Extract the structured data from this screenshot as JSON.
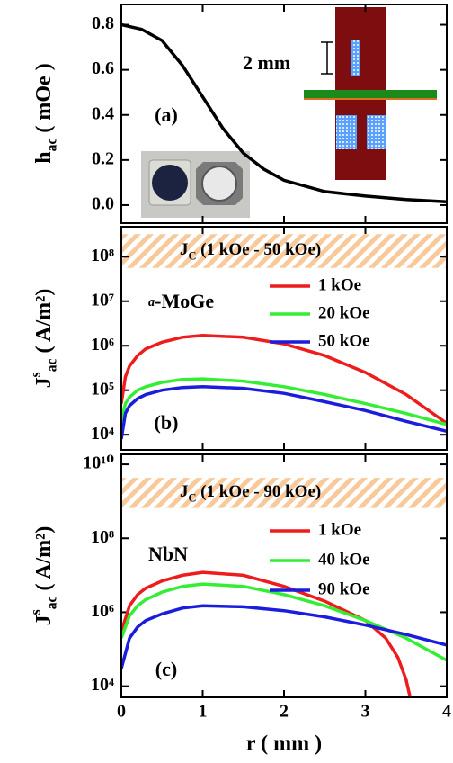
{
  "chart_data": [
    {
      "type": "line",
      "panel_label": "(a)",
      "ylabel": {
        "main": "h",
        "sub": "ac",
        "unit": " ( mOe )"
      },
      "annotation": "2 mm",
      "xlim": [
        0,
        4
      ],
      "xticks": [
        0,
        1,
        2,
        3,
        4
      ],
      "ylim": [
        -0.08,
        0.89
      ],
      "yticks": [
        {
          "value": 0,
          "label": "0.0"
        },
        0.2,
        0.4,
        0.6,
        0.8
      ],
      "series": [
        {
          "color": "#000000",
          "x": [
            0,
            0.25,
            0.5,
            0.75,
            1,
            1.25,
            1.5,
            1.75,
            2,
            2.5,
            3,
            3.5,
            4
          ],
          "values": [
            0.8,
            0.78,
            0.73,
            0.62,
            0.48,
            0.34,
            0.23,
            0.16,
            0.11,
            0.06,
            0.04,
            0.025,
            0.015
          ]
        }
      ]
    },
    {
      "type": "line",
      "log_y": true,
      "panel_label": "(b)",
      "ylabel": {
        "main": "J",
        "sup": "s",
        "sub": "ac",
        "unit": " ( A/m²)"
      },
      "material": {
        "prefix": "a",
        "rest": "-MoGe"
      },
      "jc_label": {
        "main": "J",
        "sub": "C",
        "rest": " (1 kOe - 50 kOe)"
      },
      "jc_band": [
        56000000,
        320000000
      ],
      "xlim": [
        0,
        4
      ],
      "xticks": [
        0,
        1,
        2,
        3,
        4
      ],
      "ylim": [
        4570,
        470000000
      ],
      "yticks": [
        {
          "value": 10000,
          "label": "10⁴"
        },
        {
          "value": 100000,
          "label": "10⁵"
        },
        {
          "value": 1000000,
          "label": "10⁶"
        },
        {
          "value": 10000000,
          "label": "10⁷"
        },
        {
          "value": 100000000,
          "label": "10⁸"
        }
      ],
      "series": [
        {
          "name": "1 kOe",
          "color": "#ee1c1c",
          "x": [
            0,
            0.05,
            0.1,
            0.2,
            0.3,
            0.5,
            0.75,
            1,
            1.5,
            2,
            2.5,
            3,
            3.5,
            4
          ],
          "values": [
            50000,
            200000,
            350000,
            600000,
            850000,
            1200000,
            1550000,
            1700000,
            1550000,
            1100000,
            600000,
            250000,
            80000,
            18000
          ]
        },
        {
          "name": "20 kOe",
          "color": "#33ee33",
          "x": [
            0,
            0.05,
            0.1,
            0.2,
            0.3,
            0.5,
            0.75,
            1,
            1.5,
            2,
            2.5,
            3,
            3.5,
            4
          ],
          "values": [
            20000,
            50000,
            70000,
            100000,
            120000,
            150000,
            175000,
            180000,
            160000,
            120000,
            80000,
            50000,
            30000,
            17000
          ]
        },
        {
          "name": "50 kOe",
          "color": "#1c1cdd",
          "x": [
            0,
            0.05,
            0.1,
            0.2,
            0.3,
            0.5,
            0.75,
            1,
            1.5,
            2,
            2.5,
            3,
            3.5,
            4
          ],
          "values": [
            8000,
            30000,
            45000,
            65000,
            80000,
            100000,
            115000,
            120000,
            110000,
            85000,
            55000,
            35000,
            20000,
            12000
          ]
        }
      ]
    },
    {
      "type": "line",
      "log_y": true,
      "panel_label": "(c)",
      "ylabel": {
        "main": "J",
        "sup": "s",
        "sub": "ac",
        "unit": " ( A/m²)"
      },
      "material": {
        "rest": "NbN"
      },
      "jc_label": {
        "main": "J",
        "sub": "C",
        "rest": " (1 kOe - 90 kOe)"
      },
      "jc_band": [
        660000000,
        4300000000
      ],
      "xlabel": "r ( mm )",
      "xlim": [
        0,
        4
      ],
      "xticks": [
        0,
        1,
        2,
        3,
        4
      ],
      "ylim": [
        5000,
        18600000000
      ],
      "yticks": [
        {
          "value": 10000,
          "label": "10⁴"
        },
        {
          "value": 1000000,
          "label": "10⁶"
        },
        {
          "value": 100000000,
          "label": "10⁸"
        },
        {
          "value": 10000000000,
          "label": "10¹⁰"
        }
      ],
      "series": [
        {
          "name": "1 kOe",
          "color": "#ee1c1c",
          "x": [
            0,
            0.1,
            0.2,
            0.3,
            0.5,
            0.75,
            1,
            1.5,
            2,
            2.5,
            3,
            3.25,
            3.4,
            3.5,
            3.55
          ],
          "values": [
            300000,
            1500000,
            3000000,
            4500000,
            7000000,
            10000000,
            12000000,
            10000000,
            5000000,
            2000000,
            600000,
            200000,
            60000,
            15000,
            5000
          ]
        },
        {
          "name": "40 kOe",
          "color": "#33ee33",
          "x": [
            0,
            0.1,
            0.2,
            0.3,
            0.5,
            0.75,
            1,
            1.5,
            2,
            2.5,
            3,
            3.5,
            4
          ],
          "values": [
            200000,
            800000,
            1500000,
            2200000,
            3500000,
            5000000,
            5800000,
            5000000,
            3000000,
            1500000,
            600000,
            200000,
            50000
          ]
        },
        {
          "name": "90 kOe",
          "color": "#1c1cdd",
          "x": [
            0,
            0.1,
            0.2,
            0.3,
            0.5,
            0.75,
            1,
            1.5,
            2,
            2.5,
            3,
            3.5,
            4
          ],
          "values": [
            30000,
            200000,
            400000,
            600000,
            900000,
            1300000,
            1500000,
            1400000,
            1100000,
            750000,
            450000,
            250000,
            130000
          ]
        }
      ]
    }
  ]
}
